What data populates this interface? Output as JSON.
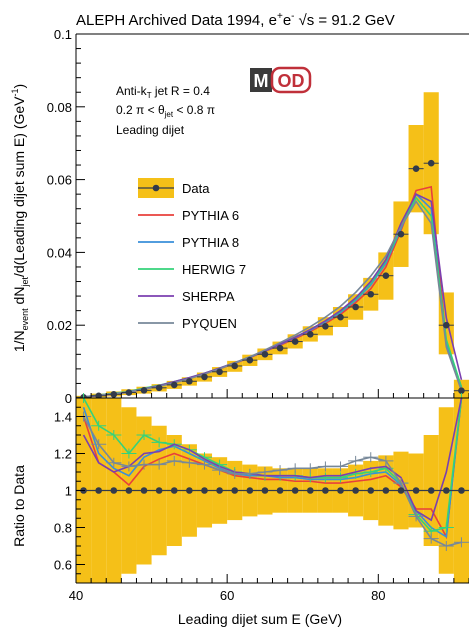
{
  "chart_data": [
    {
      "type": "line",
      "title": "ALEPH Archived Data 1994, e",
      "title_sup": "+",
      "title_e2": "e",
      "title_sup2": "-",
      "title_sqrt": "√s",
      "title_tail": " = 91.2 GeV",
      "ylabel_parts": {
        "pre": "1/N",
        "sub1": "event",
        "mid": " dN",
        "sub2": "jet",
        "post": "/d(Leading dijet sum E)  (GeV",
        "sup": "-1",
        "end": ")"
      },
      "xlim": [
        40,
        92
      ],
      "ylim": [
        0,
        0.1
      ],
      "yticks": [
        "0",
        "0.02",
        "0.04",
        "0.06",
        "0.08",
        "0.1"
      ],
      "ytick_values": [
        0,
        0.02,
        0.04,
        0.06,
        0.08,
        0.1
      ],
      "annotations": {
        "line1_a": "Anti-k",
        "line1_sub": "T",
        "line1_b": " jet R = 0.4",
        "line2_a": "0.2 π < θ",
        "line2_sub": "jet",
        "line2_b": " < 0.8 π",
        "line3": "Leading dijet"
      },
      "logo": {
        "m": "M",
        "od": "OD"
      },
      "colors": {
        "data": "#333a4a",
        "band": "#f5c018",
        "pythia6": "#e8413b",
        "pythia8": "#3a8fd9",
        "herwig7": "#35d27a",
        "sherpa": "#7b3fb0",
        "pyquen": "#778899"
      },
      "data": {
        "name": "Data",
        "x": [
          41,
          43,
          45,
          47,
          49,
          51,
          53,
          55,
          57,
          59,
          61,
          63,
          65,
          67,
          69,
          71,
          73,
          75,
          77,
          79,
          81,
          83,
          85,
          87,
          89,
          91
        ],
        "y": [
          0.0002,
          0.0006,
          0.001,
          0.0015,
          0.0021,
          0.0028,
          0.0036,
          0.0046,
          0.0058,
          0.0072,
          0.0088,
          0.0104,
          0.012,
          0.0137,
          0.0155,
          0.0175,
          0.0197,
          0.0222,
          0.025,
          0.0285,
          0.0336,
          0.045,
          0.063,
          0.0645,
          0.02,
          0.002
        ],
        "band_hi": [
          0.0006,
          0.0012,
          0.0018,
          0.0024,
          0.0031,
          0.0038,
          0.0047,
          0.0057,
          0.007,
          0.0085,
          0.0102,
          0.0119,
          0.0136,
          0.0155,
          0.0175,
          0.0197,
          0.0222,
          0.025,
          0.0285,
          0.033,
          0.04,
          0.054,
          0.075,
          0.084,
          0.029,
          0.005
        ],
        "band_lo": [
          0.0,
          0.0002,
          0.0004,
          0.0008,
          0.0012,
          0.0018,
          0.0025,
          0.0034,
          0.0045,
          0.0058,
          0.0072,
          0.0088,
          0.0104,
          0.012,
          0.0136,
          0.0155,
          0.0172,
          0.0195,
          0.0215,
          0.024,
          0.027,
          0.036,
          0.051,
          0.045,
          0.012,
          0.0
        ]
      },
      "series": [
        {
          "name": "PYTHIA 6",
          "x": [
            41,
            43,
            45,
            47,
            49,
            51,
            53,
            55,
            57,
            59,
            61,
            63,
            65,
            67,
            69,
            71,
            73,
            75,
            77,
            79,
            81,
            83,
            85,
            87,
            89,
            91
          ],
          "y": [
            0.0003,
            0.0007,
            0.0011,
            0.0016,
            0.0024,
            0.0033,
            0.0043,
            0.0054,
            0.0066,
            0.008,
            0.0095,
            0.0111,
            0.0128,
            0.0145,
            0.0163,
            0.0183,
            0.0205,
            0.023,
            0.0262,
            0.03,
            0.036,
            0.046,
            0.057,
            0.058,
            0.015,
            0.003
          ]
        },
        {
          "name": "PYTHIA 8",
          "x": [
            41,
            43,
            45,
            47,
            49,
            51,
            53,
            55,
            57,
            59,
            61,
            63,
            65,
            67,
            69,
            71,
            73,
            75,
            77,
            79,
            81,
            83,
            85,
            87,
            89,
            91
          ],
          "y": [
            0.0003,
            0.0007,
            0.0011,
            0.0016,
            0.0025,
            0.0034,
            0.0044,
            0.0055,
            0.0067,
            0.0081,
            0.0096,
            0.0112,
            0.0129,
            0.0147,
            0.0166,
            0.0186,
            0.0209,
            0.0235,
            0.0268,
            0.031,
            0.037,
            0.0465,
            0.056,
            0.052,
            0.015,
            0.003
          ]
        },
        {
          "name": "HERWIG 7",
          "x": [
            41,
            43,
            45,
            47,
            49,
            51,
            53,
            55,
            57,
            59,
            61,
            63,
            65,
            67,
            69,
            71,
            73,
            75,
            77,
            79,
            81,
            83,
            85,
            87,
            89,
            91
          ],
          "y": [
            0.0003,
            0.0008,
            0.0013,
            0.0018,
            0.0027,
            0.0035,
            0.0045,
            0.0056,
            0.0068,
            0.0082,
            0.0097,
            0.0113,
            0.013,
            0.0148,
            0.0167,
            0.0188,
            0.0211,
            0.0238,
            0.0272,
            0.0315,
            0.0375,
            0.047,
            0.055,
            0.05,
            0.016,
            0.003
          ]
        },
        {
          "name": "SHERPA",
          "x": [
            41,
            43,
            45,
            47,
            49,
            51,
            53,
            55,
            57,
            59,
            61,
            63,
            65,
            67,
            69,
            71,
            73,
            75,
            77,
            79,
            81,
            83,
            85,
            87,
            89,
            91
          ],
          "y": [
            0.0003,
            0.0007,
            0.0011,
            0.0017,
            0.0025,
            0.0034,
            0.0045,
            0.0056,
            0.0068,
            0.0082,
            0.0097,
            0.0113,
            0.013,
            0.0148,
            0.0167,
            0.0188,
            0.0212,
            0.024,
            0.0275,
            0.032,
            0.038,
            0.048,
            0.056,
            0.054,
            0.022,
            0.005
          ]
        },
        {
          "name": "PYQUEN",
          "x": [
            41,
            43,
            45,
            47,
            49,
            51,
            53,
            55,
            57,
            59,
            61,
            63,
            65,
            67,
            69,
            71,
            73,
            75,
            77,
            79,
            81,
            83,
            85,
            87,
            89,
            91
          ],
          "y": [
            0.0003,
            0.0008,
            0.0012,
            0.0017,
            0.0024,
            0.0032,
            0.0042,
            0.0053,
            0.0066,
            0.008,
            0.0096,
            0.0113,
            0.0132,
            0.0152,
            0.0173,
            0.0196,
            0.0222,
            0.0252,
            0.029,
            0.0335,
            0.039,
            0.047,
            0.054,
            0.048,
            0.014,
            0.002
          ]
        }
      ]
    },
    {
      "type": "line",
      "ylabel": "Ratio to Data",
      "xlabel": "Leading dijet sum E (GeV)",
      "xlim": [
        40,
        92
      ],
      "ylim": [
        0.5,
        1.5
      ],
      "xticks": [
        "40",
        "60",
        "80"
      ],
      "xtick_values": [
        40,
        60,
        80
      ],
      "yticks": [
        "0.6",
        "0.8",
        "1",
        "1.2",
        "1.4"
      ],
      "ytick_values": [
        0.6,
        0.8,
        1.0,
        1.2,
        1.4
      ],
      "band_x": [
        41,
        43,
        45,
        47,
        49,
        51,
        53,
        55,
        57,
        59,
        61,
        63,
        65,
        67,
        69,
        71,
        73,
        75,
        77,
        79,
        81,
        83,
        85,
        87,
        89,
        91
      ],
      "band_hi": [
        1.5,
        1.5,
        1.5,
        1.45,
        1.4,
        1.35,
        1.3,
        1.25,
        1.2,
        1.18,
        1.16,
        1.14,
        1.13,
        1.12,
        1.12,
        1.12,
        1.12,
        1.12,
        1.14,
        1.16,
        1.19,
        1.21,
        1.2,
        1.3,
        1.45,
        1.5
      ],
      "band_lo": [
        0.5,
        0.5,
        0.5,
        0.55,
        0.6,
        0.65,
        0.7,
        0.75,
        0.8,
        0.82,
        0.84,
        0.86,
        0.87,
        0.88,
        0.88,
        0.88,
        0.88,
        0.88,
        0.86,
        0.84,
        0.81,
        0.79,
        0.8,
        0.7,
        0.55,
        0.5
      ],
      "data_ratio": [
        1,
        1,
        1,
        1,
        1,
        1,
        1,
        1,
        1,
        1,
        1,
        1,
        1,
        1,
        1,
        1,
        1,
        1,
        1,
        1,
        1,
        1,
        1,
        1,
        1,
        1
      ],
      "series": [
        {
          "name": "PYTHIA 6",
          "y": [
            1.4,
            1.15,
            1.1,
            1.03,
            1.13,
            1.17,
            1.2,
            1.17,
            1.14,
            1.11,
            1.08,
            1.07,
            1.06,
            1.06,
            1.05,
            1.05,
            1.04,
            1.04,
            1.05,
            1.06,
            1.08,
            1.02,
            0.9,
            0.9,
            0.75,
            1.5
          ]
        },
        {
          "name": "PYTHIA 8",
          "y": [
            1.45,
            1.2,
            1.12,
            1.08,
            1.18,
            1.22,
            1.24,
            1.2,
            1.16,
            1.12,
            1.09,
            1.08,
            1.08,
            1.07,
            1.07,
            1.06,
            1.06,
            1.06,
            1.07,
            1.09,
            1.1,
            1.03,
            0.89,
            0.8,
            0.75,
            1.5
          ]
        },
        {
          "name": "HERWIG 7",
          "y": [
            1.5,
            1.35,
            1.3,
            1.2,
            1.3,
            1.26,
            1.25,
            1.22,
            1.18,
            1.14,
            1.1,
            1.09,
            1.08,
            1.08,
            1.08,
            1.07,
            1.07,
            1.07,
            1.09,
            1.1,
            1.12,
            1.04,
            0.87,
            0.78,
            0.8,
            1.5
          ]
        },
        {
          "name": "SHERPA",
          "y": [
            1.3,
            1.15,
            1.1,
            1.13,
            1.2,
            1.21,
            1.25,
            1.22,
            1.17,
            1.13,
            1.1,
            1.09,
            1.08,
            1.08,
            1.08,
            1.07,
            1.08,
            1.08,
            1.1,
            1.12,
            1.13,
            1.07,
            0.89,
            0.84,
            1.1,
            1.5
          ]
        },
        {
          "name": "PYQUEN",
          "y": [
            1.4,
            1.25,
            1.15,
            1.13,
            1.14,
            1.14,
            1.16,
            1.15,
            1.14,
            1.11,
            1.09,
            1.09,
            1.1,
            1.11,
            1.12,
            1.12,
            1.13,
            1.13,
            1.16,
            1.18,
            1.16,
            1.04,
            0.86,
            0.74,
            0.7,
            0.72
          ]
        }
      ]
    }
  ]
}
